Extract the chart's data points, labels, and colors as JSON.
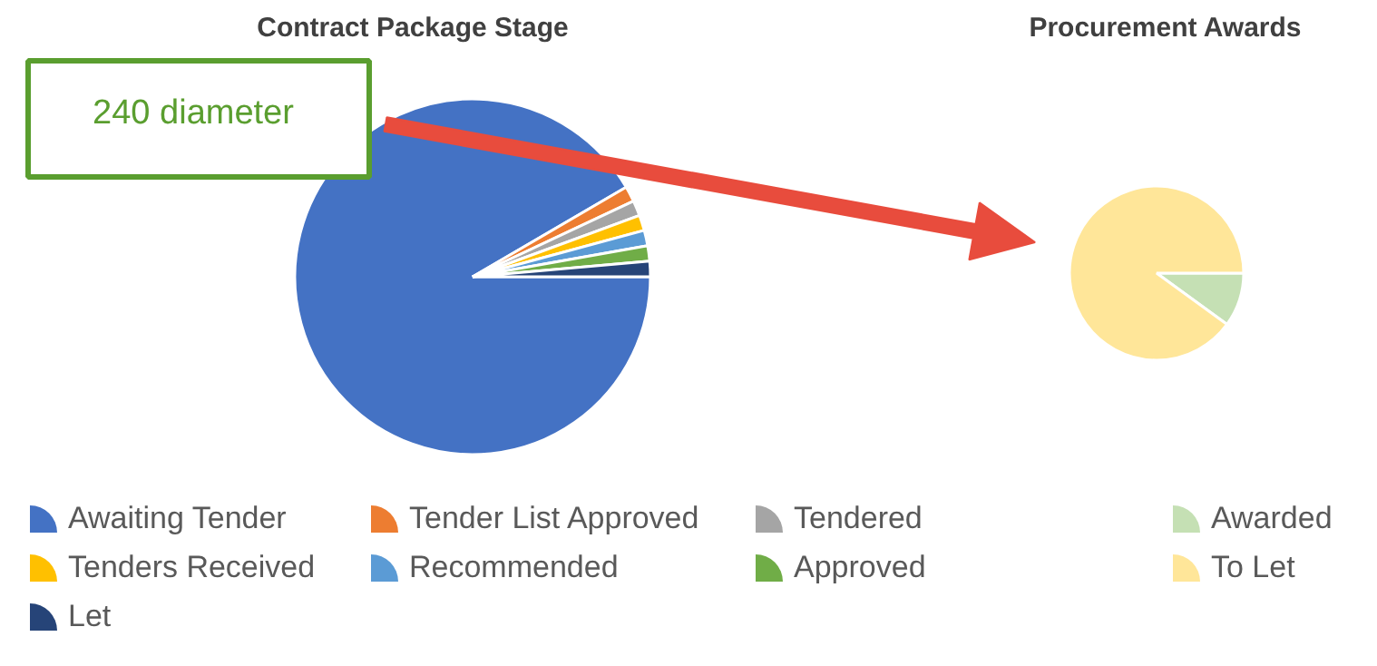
{
  "chart_data": [
    {
      "type": "pie",
      "title": "Contract Package Stage",
      "categories": [
        "Awaiting Tender",
        "Tender List Approved",
        "Tendered",
        "Tenders Received",
        "Recommended",
        "Approved",
        "Let"
      ],
      "values": [
        91.6,
        1.4,
        1.4,
        1.4,
        1.4,
        1.4,
        1.4
      ],
      "colors": [
        "#4472c4",
        "#ed7d31",
        "#a5a5a5",
        "#ffc000",
        "#5b9bd5",
        "#70ad47",
        "#264478"
      ],
      "legend": "bottom",
      "annotations": [
        "240 diameter"
      ]
    },
    {
      "type": "pie",
      "title": "Procurement Awards",
      "categories": [
        "Awarded",
        "To Let"
      ],
      "values": [
        10,
        90
      ],
      "colors": [
        "#c5e0b4",
        "#ffe699"
      ],
      "legend": "bottom"
    }
  ]
}
